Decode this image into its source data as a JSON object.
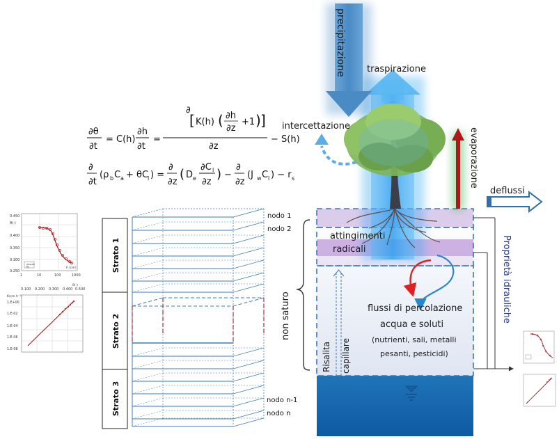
{
  "processes": {
    "precipitation": "precipitazione",
    "transpiration": "traspirazione",
    "interception": "intercettazione",
    "evaporation": "evaporazione",
    "runoff": "deflussi",
    "root_uptake_line1": "attingimenti",
    "root_uptake_line2": "radicali",
    "unsaturated": "non saturo",
    "capillary_rise_line1": "Risalita",
    "capillary_rise_line2": "capillare",
    "percolation_line1": "flussi di percolazione",
    "percolation_line2": "acqua e soluti",
    "percolation_line3": "(nutrienti, sali, metalli",
    "percolation_line4": "pesanti, pesticidi)",
    "hydraulic_properties": "Proprietà idrauliche"
  },
  "equations": {
    "richards": "∂θ/∂t = C(h) ∂h/∂t = ∂[K(h)(∂h/∂z + 1)]/∂z − S(h)",
    "solute": "∂/∂t (ρbCa + θCl) = ∂/∂z (De ∂Cl/∂z) − ∂/∂z (JwCl) − rs"
  },
  "layers": [
    "Strato 1",
    "Strato 2",
    "Strato 3"
  ],
  "nodes": [
    "nodo 1",
    "nodo 2",
    "nodo n-1",
    "nodo n"
  ],
  "retention_chart": {
    "y_label": "θ(-)",
    "x_label": "h (cm)",
    "y_ticks": [
      "0.450",
      "0.400",
      "0.350",
      "0.300",
      "0.250"
    ],
    "x_ticks": [
      "1",
      "10",
      "100",
      "1000"
    ],
    "legend": [
      "misure",
      "fit"
    ]
  },
  "conductivity_chart": {
    "x_label": "θ(-)",
    "y_label": "K(cm h⁻¹)",
    "x_ticks": [
      "0.100",
      "0.200",
      "0.300",
      "0.400",
      "0.500"
    ],
    "y_ticks": [
      "1.E+00",
      "1.E-02",
      "1.E-04",
      "1.E-06",
      "1.E-08"
    ]
  },
  "colors": {
    "precip_arrow": "#4f90c8",
    "transp_glow": "#2aa4f2",
    "evap_arrow": "#b01818",
    "runoff_arrow": "#2e6fb2",
    "water_table": "#1f6fb3",
    "unsat_zone": "#dde6f5",
    "root_band": "#c9b2e2",
    "grid_line": "#3d7ab8"
  }
}
